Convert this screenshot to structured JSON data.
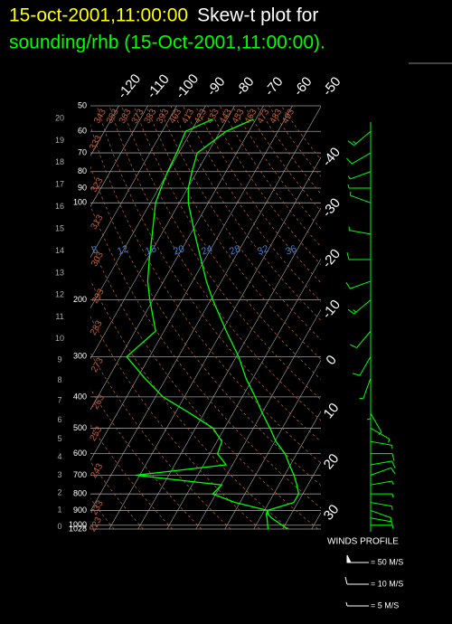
{
  "chart_data": {
    "type": "skewt",
    "title": [
      "15-oct-2001,11:00:00",
      "Skew-t plot for",
      "sounding/rhb (15-Oct-2001,11:00:00)."
    ],
    "title_colors": [
      "#ffff00",
      "#ffffff",
      "#00ff00"
    ],
    "log_y": true,
    "pressure": [
      1028,
      950,
      925,
      900,
      850,
      800,
      750,
      700,
      650,
      600,
      550,
      500,
      450,
      400,
      350,
      300,
      250,
      200,
      175,
      150,
      125,
      100,
      90,
      80,
      70,
      60,
      55
    ],
    "series": [
      {
        "color": "#00ff00",
        "values": [
          21.7,
          14.0,
          12.0,
          11.1,
          18.6,
          18.6,
          16.2,
          13.3,
          9.7,
          6.0,
          0.4,
          -4.3,
          -9.8,
          -15.5,
          -22.4,
          -29.2,
          -38.5,
          -49.3,
          -55.2,
          -61.3,
          -68.5,
          -76.9,
          -79.8,
          -81.8,
          -83.6,
          -77.9,
          -70.8
        ]
      },
      {
        "color": "#00ff00",
        "values": [
          14.9,
          12.4,
          11.4,
          11.1,
          -1.7,
          -11.1,
          -9.8,
          -41.4,
          -12.2,
          -17.4,
          -18.3,
          -24.0,
          -34.8,
          -47.4,
          -57.4,
          -67.9,
          -62.9,
          -71.1,
          -75.5,
          -79.2,
          -83.2,
          -88.2,
          -89.2,
          -90.2,
          -90.8,
          -91.9,
          -84.9
        ]
      }
    ],
    "ylim": [
      1028,
      50
    ],
    "yticks": [
      50,
      60,
      70,
      80,
      90,
      100,
      200,
      300,
      400,
      500,
      600,
      700,
      800,
      900,
      1000,
      1028
    ],
    "height_ticks": [
      20,
      19,
      18,
      17,
      16,
      15,
      14,
      13,
      12,
      11,
      10,
      9,
      8,
      7,
      6,
      5,
      4,
      3,
      2,
      1,
      0
    ],
    "xlim": [
      -120,
      30
    ],
    "xticks": [
      -120,
      -110,
      -100,
      -90,
      -80,
      -70,
      -60,
      -50,
      -40,
      -30,
      -20,
      -10,
      0,
      10,
      20,
      30
    ],
    "grid": true,
    "theta_ticks": [
      223,
      233,
      243,
      253,
      263,
      273,
      283,
      293,
      303,
      313,
      323,
      333,
      343,
      353,
      363,
      373,
      383,
      393,
      403,
      413,
      423,
      433,
      443,
      453,
      463,
      473,
      483,
      493
    ],
    "theta_color": "#c0603a",
    "mixing_labels": [
      8,
      12,
      16,
      20,
      24,
      28,
      32,
      36
    ],
    "mixing_color": "#4a7fc8",
    "winds": {
      "title": "WINDS PROFILE",
      "color": "#00ff00",
      "pressure": [
        1000,
        950,
        900,
        850,
        800,
        750,
        700,
        650,
        600,
        550,
        500,
        450,
        400,
        350,
        300,
        250,
        200,
        175,
        150,
        125,
        100,
        90,
        80,
        70,
        60
      ],
      "speed": [
        6,
        8,
        8,
        7,
        6,
        8,
        10,
        12,
        10,
        8,
        6,
        5,
        7,
        9,
        10,
        12,
        15,
        13,
        10,
        8,
        6,
        7,
        9,
        12,
        15
      ],
      "direction": [
        90,
        100,
        110,
        100,
        90,
        80,
        70,
        80,
        90,
        100,
        120,
        150,
        180,
        200,
        210,
        220,
        230,
        250,
        270,
        280,
        290,
        270,
        250,
        240,
        230
      ],
      "legend": [
        {
          "value": 50,
          "label": "= 50 M/S"
        },
        {
          "value": 10,
          "label": "= 10 M/S"
        },
        {
          "value": 5,
          "label": "= 5 M/S"
        }
      ]
    }
  }
}
